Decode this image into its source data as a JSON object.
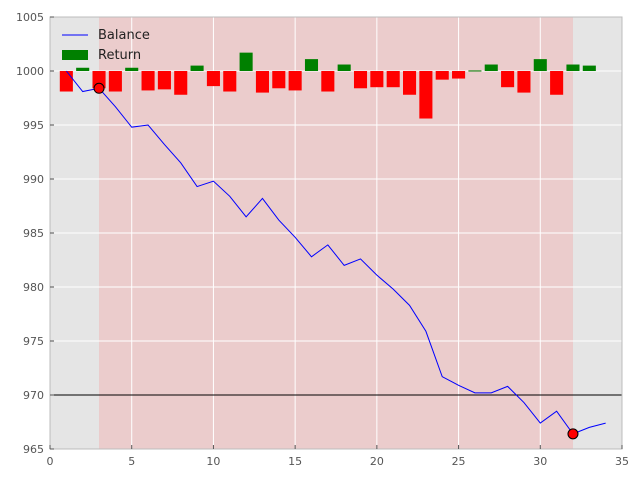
{
  "chart_data": {
    "type": "line",
    "title": "",
    "xlabel": "",
    "ylabel": "",
    "xlim": [
      0,
      35
    ],
    "ylim": [
      965,
      1005
    ],
    "xticks": [
      0,
      5,
      10,
      15,
      20,
      25,
      30,
      35
    ],
    "yticks": [
      965,
      970,
      975,
      980,
      985,
      990,
      995,
      1000,
      1005
    ],
    "grid": true,
    "legend_position": "top-left",
    "background_color": "#e5e5e5",
    "shaded_region": {
      "x_start": 3,
      "x_end": 32,
      "color": "#f0b8b8"
    },
    "reference_line": {
      "y": 970,
      "color": "#000000"
    },
    "series": [
      {
        "name": "Balance",
        "kind": "line",
        "color": "#0000ff",
        "x": [
          1,
          2,
          3,
          4,
          5,
          6,
          7,
          8,
          9,
          10,
          11,
          12,
          13,
          14,
          15,
          16,
          17,
          18,
          19,
          20,
          21,
          22,
          23,
          24,
          25,
          26,
          27,
          28,
          29,
          30,
          31,
          32,
          33,
          34
        ],
        "values": [
          1000,
          998.1,
          998.4,
          996.7,
          994.8,
          995.0,
          993.2,
          991.5,
          989.3,
          989.8,
          988.4,
          986.5,
          988.2,
          986.2,
          984.6,
          982.8,
          983.9,
          982.0,
          982.6,
          981.1,
          979.8,
          978.3,
          975.9,
          971.7,
          970.9,
          970.2,
          970.2,
          970.8,
          969.3,
          967.4,
          968.5,
          966.4,
          967.0,
          967.4
        ]
      },
      {
        "name": "Return",
        "kind": "bar",
        "colors": {
          "positive": "#008000",
          "negative": "#ff0000"
        },
        "baseline": 1000,
        "x": [
          1,
          2,
          3,
          4,
          5,
          6,
          7,
          8,
          9,
          10,
          11,
          12,
          13,
          14,
          15,
          16,
          17,
          18,
          19,
          20,
          21,
          22,
          23,
          24,
          25,
          26,
          27,
          28,
          29,
          30,
          31,
          32,
          33
        ],
        "values": [
          -1.9,
          0.3,
          -1.6,
          -1.9,
          0.3,
          -1.8,
          -1.7,
          -2.2,
          0.5,
          -1.4,
          -1.9,
          1.7,
          -2.0,
          -1.6,
          -1.8,
          1.1,
          -1.9,
          0.6,
          -1.6,
          -1.5,
          -1.5,
          -2.2,
          -4.4,
          -0.8,
          -0.7,
          0.05,
          0.6,
          -1.5,
          -2.0,
          1.1,
          -2.2,
          0.6,
          0.5
        ]
      }
    ],
    "markers": [
      {
        "x": 3,
        "y": 998.4,
        "color": "#ff0000"
      },
      {
        "x": 32,
        "y": 966.4,
        "color": "#ff0000"
      }
    ],
    "legend": [
      {
        "label": "Balance",
        "swatch": "line",
        "color": "#0000ff"
      },
      {
        "label": "Return",
        "swatch": "patch",
        "color": "#008000"
      }
    ]
  }
}
